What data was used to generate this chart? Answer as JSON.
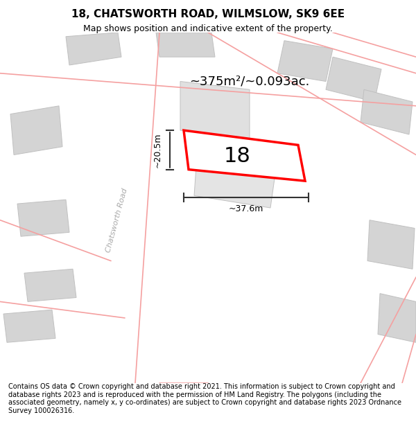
{
  "title_line1": "18, CHATSWORTH ROAD, WILMSLOW, SK9 6EE",
  "title_line2": "Map shows position and indicative extent of the property.",
  "area_text": "~375m²/~0.093ac.",
  "width_label": "~37.6m",
  "height_label": "~20.5m",
  "number_label": "18",
  "footer_text": "Contains OS data © Crown copyright and database right 2021. This information is subject to Crown copyright and database rights 2023 and is reproduced with the permission of HM Land Registry. The polygons (including the associated geometry, namely x, y co-ordinates) are subject to Crown copyright and database rights 2023 Ordnance Survey 100026316.",
  "bg_color": "#f0f0f0",
  "map_bg": "#f5f5f5",
  "road_color": "#f5a0a0",
  "building_color": "#d8d8d8",
  "highlight_building_color": "#e8e8e8",
  "red_outline_color": "#ff0000",
  "dimension_color": "#333333",
  "road_label": "Chatsworth Road",
  "title_fontsize": 11,
  "subtitle_fontsize": 9,
  "footer_fontsize": 7
}
